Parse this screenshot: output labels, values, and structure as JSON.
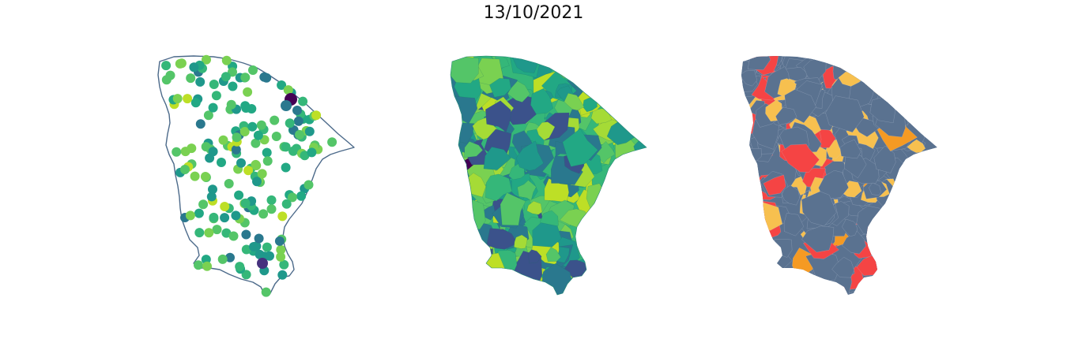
{
  "title": "13/10/2021",
  "panels": [
    {
      "kind": "station-points",
      "outline_color": "#4c6a8a"
    },
    {
      "kind": "municipality-choropleth-continuous",
      "colormap": "viridis"
    },
    {
      "kind": "municipality-choropleth-categorical",
      "base_color": "#5a7290",
      "class_colors": [
        "#5a7290",
        "#f7c04f",
        "#f59a23",
        "#f54444"
      ]
    }
  ]
}
